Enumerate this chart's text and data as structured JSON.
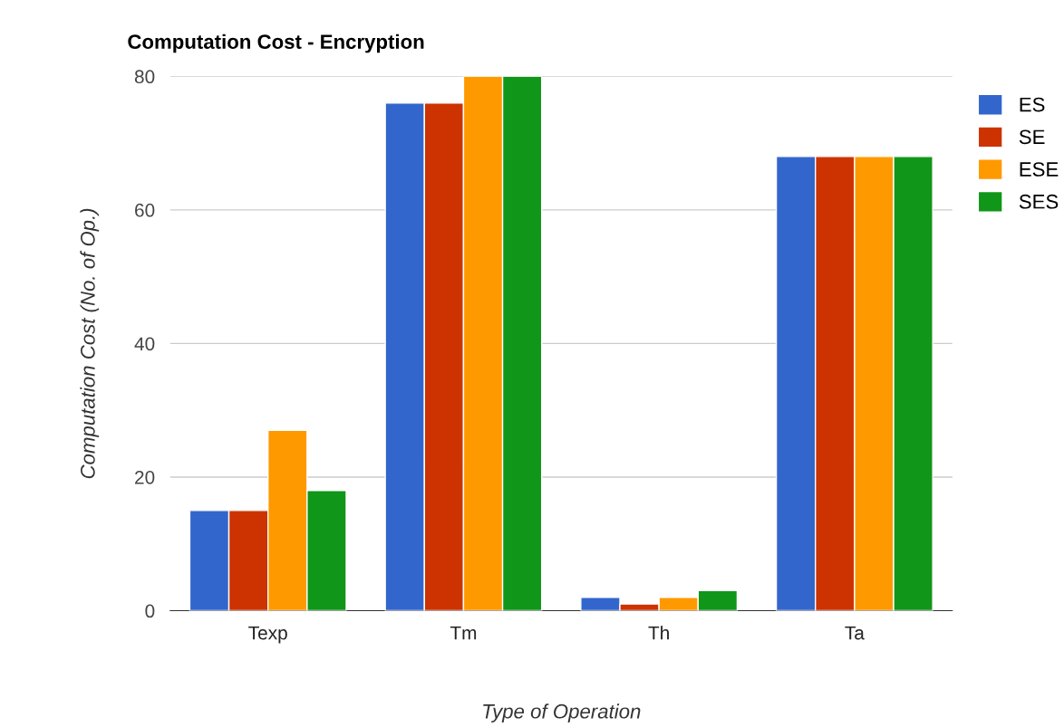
{
  "chart_data": {
    "type": "bar",
    "title": "Computation Cost - Encryption",
    "xlabel": "Type of Operation",
    "ylabel": "Computation Cost (No. of Op.)",
    "categories": [
      "Texp",
      "Tm",
      "Th",
      "Ta"
    ],
    "series": [
      {
        "name": "ES",
        "color": "#3366cc",
        "values": [
          15,
          76,
          2,
          68
        ]
      },
      {
        "name": "SE",
        "color": "#cc3300",
        "values": [
          15,
          76,
          1,
          68
        ]
      },
      {
        "name": "ESE",
        "color": "#ff9900",
        "values": [
          27,
          80,
          2,
          68
        ]
      },
      {
        "name": "SES",
        "color": "#109618",
        "values": [
          18,
          80,
          3,
          68
        ]
      }
    ],
    "ylim": [
      0,
      80
    ],
    "yticks": [
      0,
      20,
      40,
      60,
      80
    ],
    "grid": "y",
    "legend": "top right"
  }
}
